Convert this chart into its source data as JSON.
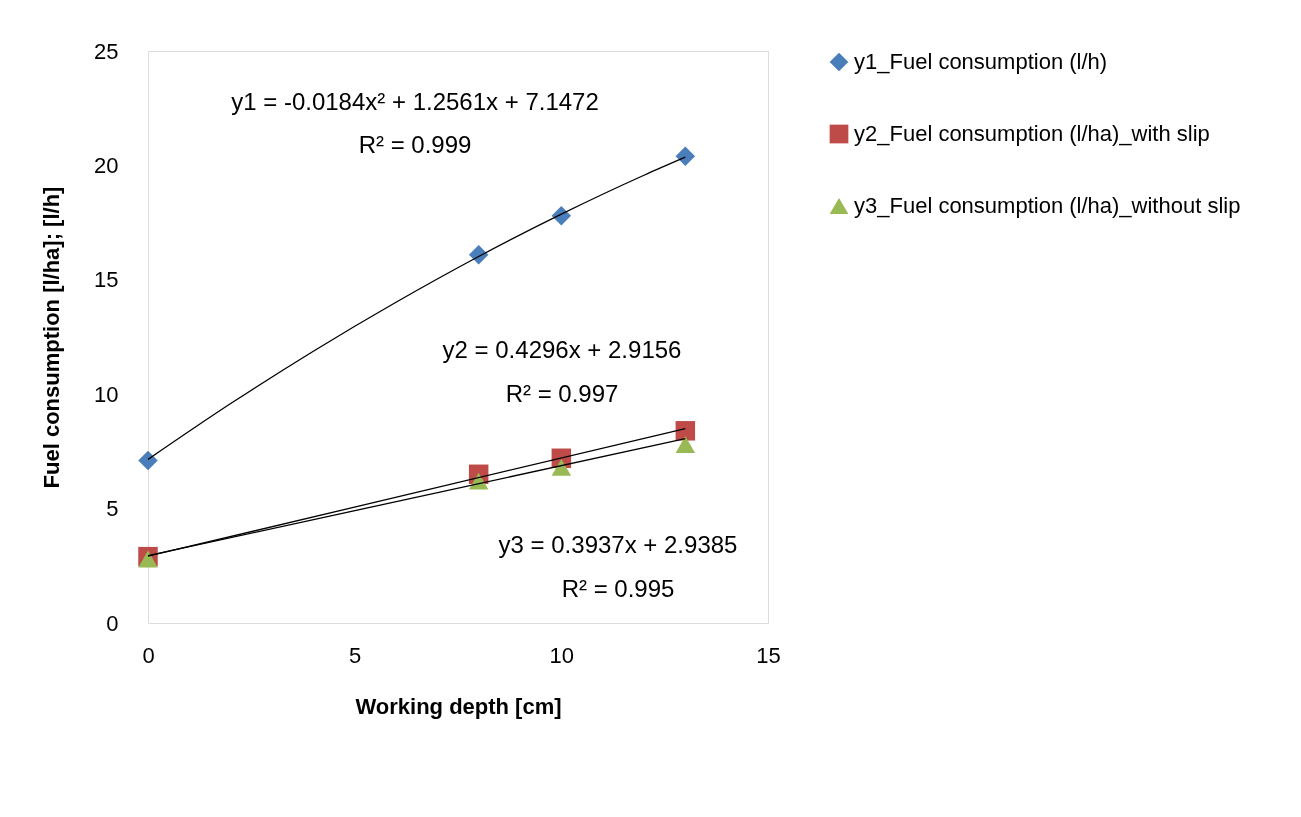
{
  "chart_data": {
    "type": "scatter",
    "xlabel": "Working depth [cm]",
    "ylabel": "Fuel consumption [l/ha]; [l/h]",
    "xlim": [
      0,
      15
    ],
    "xticks": [
      0,
      5,
      10,
      15
    ],
    "ylim": [
      0,
      25
    ],
    "yticks": [
      0,
      5,
      10,
      15,
      20,
      25
    ],
    "grid": false,
    "legend": "right",
    "series": [
      {
        "name": "y1_Fuel consumption (l/h)",
        "color": "#4a7ebb",
        "marker": "diamond",
        "x": [
          0,
          8,
          10,
          13
        ],
        "values": [
          7.1,
          16.1,
          17.8,
          20.4
        ]
      },
      {
        "name": "y2_Fuel consumption (l/ha)_with slip",
        "color": "#be4b48",
        "marker": "square",
        "x": [
          0,
          8,
          10,
          13
        ],
        "values": [
          2.9,
          6.5,
          7.2,
          8.4
        ]
      },
      {
        "name": "y3_Fuel consumption (l/ha)_without slip",
        "color": "#98b954",
        "marker": "triangle",
        "x": [
          0,
          8,
          10,
          13
        ],
        "values": [
          2.8,
          6.2,
          6.8,
          7.8
        ]
      },
      {
        "type": "line",
        "color": "#000000",
        "x": [
          0,
          2,
          4,
          6,
          8,
          10,
          12,
          13
        ],
        "values": [
          7.15,
          9.59,
          11.88,
          14.02,
          16.02,
          17.87,
          19.57,
          20.36
        ]
      },
      {
        "type": "line",
        "color": "#000000",
        "x": [
          0,
          13
        ],
        "values": [
          2.92,
          8.5
        ]
      },
      {
        "type": "line",
        "color": "#000000",
        "x": [
          0,
          13
        ],
        "values": [
          2.94,
          8.06
        ]
      }
    ],
    "annotations": [
      "y1 = -0.0184x² + 1.2561x + 7.1472",
      "R² = 0.999",
      "y2 = 0.4296x + 2.9156",
      "R² = 0.997",
      "y3 = 0.3937x + 2.9385",
      "R² = 0.995"
    ]
  }
}
